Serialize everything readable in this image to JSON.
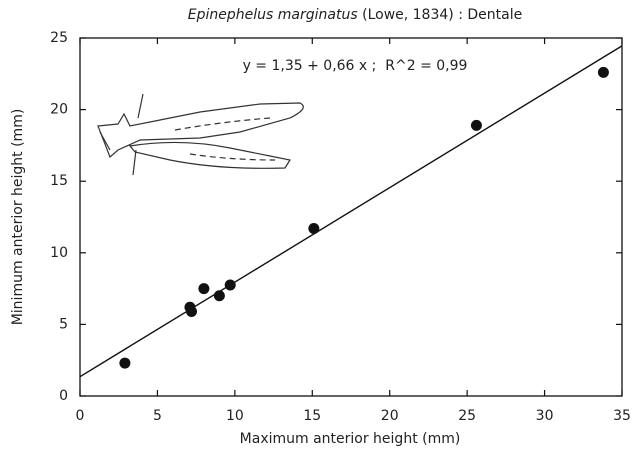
{
  "chart_data": {
    "type": "scatter",
    "title_species": "Epinephelus marginatus",
    "title_rest": "(Lowe, 1834) : Dentale",
    "annotation": "y = 1,35 + 0,66 x ;  R^2 = 0,99",
    "x_label": "Maximum anterior height (mm)",
    "y_label": "Minimum anterior height (mm)",
    "x": [
      2.9,
      7.1,
      7.2,
      8.0,
      9.0,
      9.7,
      15.1,
      25.6,
      33.8
    ],
    "values": [
      2.3,
      6.2,
      5.9,
      7.5,
      7.0,
      7.75,
      11.7,
      18.9,
      22.6
    ],
    "color": "#111111",
    "regression": {
      "intercept": 1.35,
      "slope": 0.66
    },
    "xlim": [
      0,
      35
    ],
    "xticks": [
      0,
      5,
      10,
      15,
      20,
      25,
      30,
      35
    ],
    "ylim": [
      0,
      25
    ],
    "yticks": [
      0,
      5,
      10,
      15,
      20,
      25
    ]
  }
}
